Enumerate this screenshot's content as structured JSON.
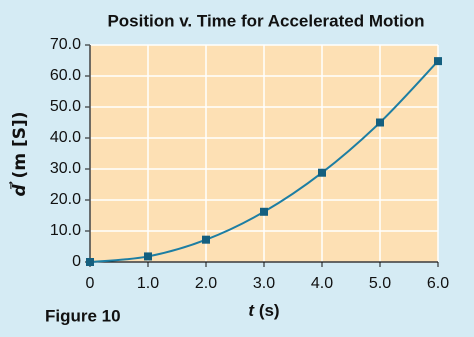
{
  "chart_data": {
    "type": "line",
    "title": "Position v. Time for Accelerated Motion",
    "caption": "Figure 10",
    "xlabel": {
      "symbol": "t",
      "unit": "(s)"
    },
    "ylabel": {
      "symbol": "d⃗",
      "unit": "(m [S])"
    },
    "x": [
      0,
      1,
      2,
      3,
      4,
      5,
      6
    ],
    "series": [
      {
        "color": "#1d7ea3",
        "values": [
          0,
          1.8,
          7.2,
          16.2,
          28.8,
          45,
          64.8
        ]
      }
    ],
    "xlim": [
      0,
      6
    ],
    "xticks": [
      0,
      {
        "value": 1,
        "label": "1.0"
      },
      {
        "value": 2,
        "label": "2.0"
      },
      {
        "value": 3,
        "label": "3.0"
      },
      {
        "value": 4,
        "label": "4.0"
      },
      {
        "value": 5,
        "label": "5.0"
      },
      {
        "value": 6,
        "label": "6.0"
      }
    ],
    "ylim": [
      0,
      70
    ],
    "yticks": [
      0,
      {
        "value": 10,
        "label": "10.0"
      },
      {
        "value": 20,
        "label": "20.0"
      },
      {
        "value": 30,
        "label": "30.0"
      },
      {
        "value": 40,
        "label": "40.0"
      },
      {
        "value": 50,
        "label": "50.0"
      },
      {
        "value": 60,
        "label": "60.0"
      },
      {
        "value": 70,
        "label": "70.0"
      }
    ],
    "grid": true
  }
}
